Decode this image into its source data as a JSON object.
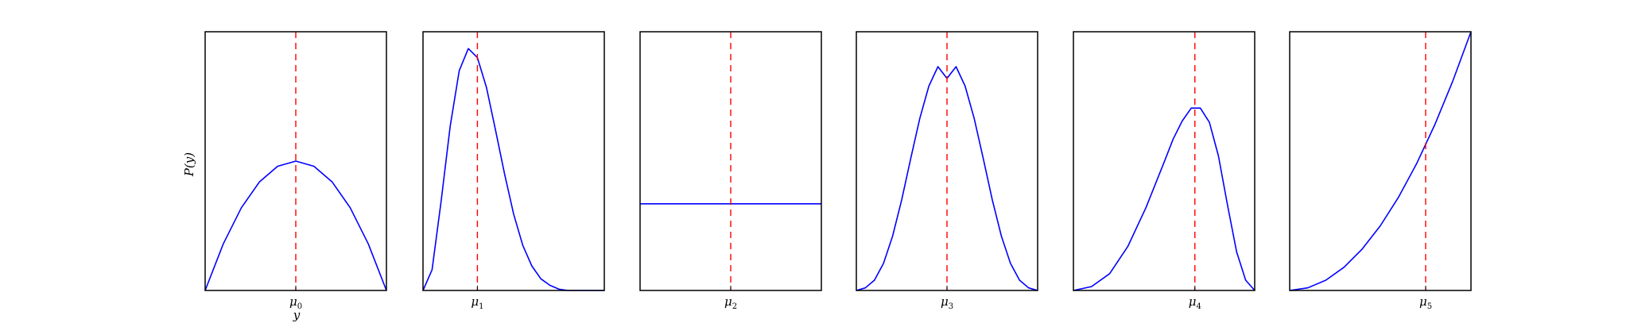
{
  "chart_data": [
    {
      "type": "line",
      "x": [
        0,
        0.1,
        0.2,
        0.3,
        0.4,
        0.5,
        0.6,
        0.7,
        0.8,
        0.9,
        1.0
      ],
      "y": [
        0,
        0.36,
        0.64,
        0.84,
        0.96,
        1.0,
        0.96,
        0.84,
        0.64,
        0.36,
        0
      ],
      "xlim": [
        0,
        1
      ],
      "ylim": [
        0,
        2
      ],
      "xtick_label": "μ",
      "xtick_sub": "0",
      "mean": 0.5,
      "xlabel": "y",
      "ylabel": "P(y)",
      "grid": false
    },
    {
      "type": "line",
      "x": [
        0,
        0.05,
        0.1,
        0.15,
        0.2,
        0.25,
        0.3,
        0.35,
        0.4,
        0.45,
        0.5,
        0.55,
        0.6,
        0.65,
        0.7,
        0.75,
        0.8,
        0.9,
        1.0
      ],
      "y": [
        0,
        0.16,
        0.69,
        1.27,
        1.7,
        1.87,
        1.8,
        1.57,
        1.24,
        0.9,
        0.59,
        0.35,
        0.19,
        0.09,
        0.04,
        0.01,
        0.0,
        0,
        0
      ],
      "xlim": [
        0,
        1
      ],
      "ylim": [
        0,
        2
      ],
      "xtick_label": "μ",
      "xtick_sub": "1",
      "mean": 0.3,
      "xlabel": "",
      "ylabel": "",
      "grid": false
    },
    {
      "type": "line",
      "x": [
        0,
        1
      ],
      "y": [
        0.67,
        0.67
      ],
      "xlim": [
        0,
        1
      ],
      "ylim": [
        0,
        2
      ],
      "xtick_label": "μ",
      "xtick_sub": "2",
      "mean": 0.5,
      "xlabel": "",
      "ylabel": "",
      "grid": false
    },
    {
      "type": "line",
      "x": [
        0,
        0.05,
        0.1,
        0.15,
        0.2,
        0.25,
        0.3,
        0.35,
        0.4,
        0.45,
        0.5,
        0.55,
        0.6,
        0.65,
        0.7,
        0.75,
        0.8,
        0.85,
        0.9,
        0.95,
        1.0
      ],
      "y": [
        0,
        0.02,
        0.08,
        0.21,
        0.42,
        0.7,
        1.02,
        1.33,
        1.58,
        1.73,
        1.64,
        1.73,
        1.58,
        1.33,
        1.02,
        0.7,
        0.42,
        0.21,
        0.08,
        0.02,
        0
      ],
      "xlim": [
        0,
        1
      ],
      "ylim": [
        0,
        2
      ],
      "xtick_label": "μ",
      "xtick_sub": "3",
      "mean": 0.5,
      "xlabel": "",
      "ylabel": "",
      "grid": false
    },
    {
      "type": "line",
      "x": [
        0,
        0.1,
        0.2,
        0.3,
        0.4,
        0.5,
        0.55,
        0.6,
        0.65,
        0.7,
        0.75,
        0.8,
        0.85,
        0.9,
        0.95,
        1.0
      ],
      "y": [
        0,
        0.03,
        0.13,
        0.34,
        0.64,
        0.99,
        1.17,
        1.31,
        1.41,
        1.41,
        1.3,
        1.04,
        0.66,
        0.3,
        0.08,
        0
      ],
      "xlim": [
        0,
        1
      ],
      "ylim": [
        0,
        2
      ],
      "xtick_label": "μ",
      "xtick_sub": "4",
      "mean": 0.67,
      "xlabel": "",
      "ylabel": "",
      "grid": false
    },
    {
      "type": "line",
      "x": [
        0,
        0.1,
        0.2,
        0.3,
        0.4,
        0.5,
        0.6,
        0.7,
        0.8,
        0.9,
        1.0
      ],
      "y": [
        0,
        0.02,
        0.08,
        0.18,
        0.32,
        0.5,
        0.72,
        0.98,
        1.28,
        1.62,
        2.0
      ],
      "xlim": [
        0,
        1
      ],
      "ylim": [
        0,
        2
      ],
      "xtick_label": "μ",
      "xtick_sub": "5",
      "mean": 0.75,
      "xlabel": "",
      "ylabel": "",
      "grid": false
    }
  ],
  "colors": {
    "line": "#0000ff",
    "mean_line": "#ff0000",
    "frame": "#000000"
  }
}
